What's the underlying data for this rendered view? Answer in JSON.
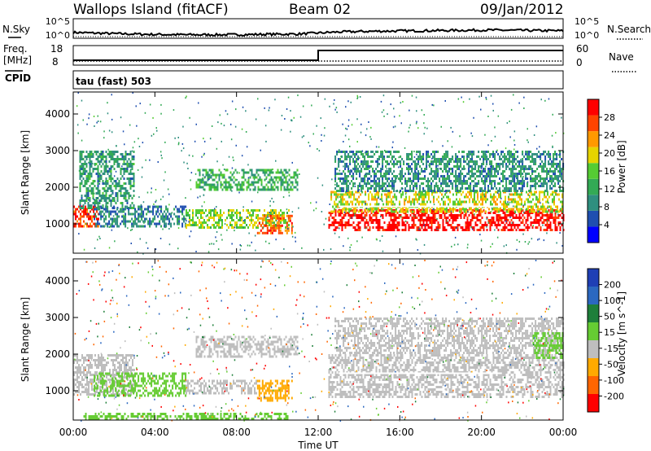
{
  "header": {
    "station": "Wallops Island (fitACF)",
    "beam": "Beam 02",
    "date": "09/Jan/2012"
  },
  "strip_nsky": {
    "left_label": "N.Sky",
    "right_label": "N.Search",
    "left_ticks": [
      "10^5",
      "10^0"
    ],
    "right_ticks": [
      "10^5",
      "10^0"
    ]
  },
  "strip_freq": {
    "left_label_line1": "Freq.",
    "left_label_line2": "[MHz]",
    "right_label": "Nave",
    "left_ticks": [
      "18",
      "8"
    ],
    "right_ticks": [
      "60",
      "0"
    ]
  },
  "strip_cpid": {
    "left_label": "CPID",
    "text": "tau (fast) 503"
  },
  "colors": {
    "power_scale": [
      "#0000ff",
      "#1f4fb0",
      "#2f8f7f",
      "#33aa55",
      "#55cc33",
      "#e6d400",
      "#ff9900",
      "#ff4400",
      "#ff0000"
    ],
    "velocity_scale": [
      "#1f3fb5",
      "#2b68c0",
      "#1e7f3a",
      "#66cc33",
      "#bebebe",
      "#ffaa00",
      "#ff6600",
      "#ff0000"
    ],
    "gray": "#bebebe"
  },
  "chart_data": [
    {
      "type": "line",
      "name": "nsky-nsearch-strip",
      "x": [
        "00:00",
        "02:00",
        "04:00",
        "06:00",
        "08:00",
        "10:00",
        "12:00",
        "13:00",
        "14:00",
        "16:00",
        "18:00",
        "20:00",
        "22:00",
        "24:00"
      ],
      "series": [
        {
          "name": "N.Sky",
          "values": [
            1.5,
            1.2,
            1.0,
            0.9,
            0.9,
            1.0,
            1.1,
            1.6,
            1.8,
            1.9,
            2.0,
            2.1,
            2.0,
            1.9
          ]
        }
      ],
      "ylim": [
        0,
        5
      ]
    },
    {
      "type": "line",
      "name": "freq-nave-strip",
      "x": [
        "00:00",
        "12:00",
        "12:00",
        "24:00"
      ],
      "series": [
        {
          "name": "Freq. [MHz]",
          "values": [
            10.5,
            10.5,
            15.5,
            15.5
          ]
        },
        {
          "name": "Nave",
          "values": [
            5,
            5,
            5,
            5
          ]
        }
      ],
      "ylim": [
        8,
        18
      ]
    },
    {
      "type": "heatmap",
      "name": "power-panel",
      "xlabel": "",
      "ylabel": "Slant Range [km]",
      "xlim": [
        0,
        24
      ],
      "ylim": [
        200,
        4600
      ],
      "yticks": [
        1000,
        2000,
        3000,
        4000
      ],
      "colorbar": {
        "label": "Power [dB]",
        "ticks": [
          4,
          8,
          12,
          16,
          20,
          24,
          28
        ],
        "range": [
          0,
          30
        ]
      },
      "regions": [
        {
          "t0": 0.0,
          "t1": 1.2,
          "r0": 900,
          "r1": 1500,
          "value": 26
        },
        {
          "t0": 0.3,
          "t1": 3.0,
          "r0": 1400,
          "r1": 3000,
          "value": 10
        },
        {
          "t0": 1.0,
          "t1": 5.5,
          "r0": 900,
          "r1": 1500,
          "value": 8
        },
        {
          "t0": 5.5,
          "t1": 10.6,
          "r0": 900,
          "r1": 1400,
          "value": 16
        },
        {
          "t0": 9.0,
          "t1": 10.7,
          "r0": 750,
          "r1": 1250,
          "value": 24
        },
        {
          "t0": 6.0,
          "t1": 11.0,
          "r0": 1900,
          "r1": 2500,
          "value": 12
        },
        {
          "t0": 12.5,
          "t1": 24.0,
          "r0": 850,
          "r1": 1400,
          "value": 29
        },
        {
          "t0": 12.6,
          "t1": 24.0,
          "r0": 1350,
          "r1": 1900,
          "value": 18
        },
        {
          "t0": 12.8,
          "t1": 24.0,
          "r0": 1900,
          "r1": 3000,
          "value": 9
        }
      ]
    },
    {
      "type": "heatmap",
      "name": "velocity-panel",
      "xlabel": "Time UT",
      "ylabel": "Slant Range [km]",
      "xlim": [
        0,
        24
      ],
      "ylim": [
        200,
        4600
      ],
      "xticks": [
        "00:00",
        "04:00",
        "08:00",
        "12:00",
        "16:00",
        "20:00",
        "00:00"
      ],
      "yticks": [
        1000,
        2000,
        3000,
        4000
      ],
      "colorbar": {
        "label": "Velocity [m s^-1]",
        "ticks": [
          200,
          100,
          50,
          15,
          -15,
          -50,
          -100,
          -200
        ],
        "range": [
          -250,
          250
        ]
      },
      "regions": [
        {
          "t0": 0.0,
          "t1": 3.0,
          "r0": 900,
          "r1": 2000,
          "value": 0
        },
        {
          "t0": 1.0,
          "t1": 5.5,
          "r0": 850,
          "r1": 1500,
          "value": 35
        },
        {
          "t0": 5.5,
          "t1": 9.0,
          "r0": 900,
          "r1": 1300,
          "value": 0
        },
        {
          "t0": 9.0,
          "t1": 10.7,
          "r0": 750,
          "r1": 1300,
          "value": -40
        },
        {
          "t0": 0.5,
          "t1": 10.5,
          "r0": 250,
          "r1": 400,
          "value": 30
        },
        {
          "t0": 6.0,
          "t1": 11.0,
          "r0": 1900,
          "r1": 2500,
          "value": 0
        },
        {
          "t0": 12.5,
          "t1": 24.0,
          "r0": 850,
          "r1": 2000,
          "value": 0
        },
        {
          "t0": 12.8,
          "t1": 24.0,
          "r0": 2000,
          "r1": 3000,
          "value": 0
        },
        {
          "t0": 22.5,
          "t1": 24.0,
          "r0": 1900,
          "r1": 2600,
          "value": 35
        }
      ]
    }
  ],
  "power_title": "Power [dB]",
  "velocity_title": "Velocity [m s^-1]",
  "x_title": "Time UT",
  "y_title": "Slant Range [km]"
}
